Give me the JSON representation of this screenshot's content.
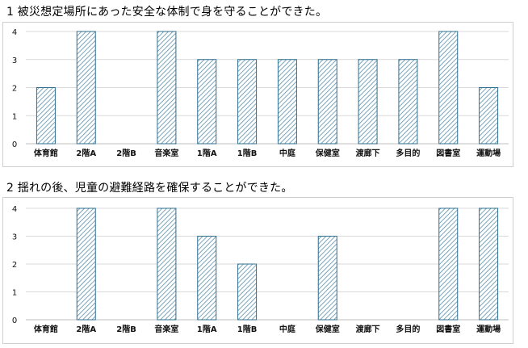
{
  "charts": [
    {
      "title": "1 被災想定場所にあった安全な体制で身を守ることができた。"
    },
    {
      "title": "2 揺れの後、児童の避難経路を確保することができた。"
    }
  ],
  "colors": {
    "bar_stroke": "#2f6f8f",
    "hatch": "#5a8fab",
    "grid": "#d9d9d9",
    "axis": "#bfbfbf"
  },
  "chart_data": [
    {
      "type": "bar",
      "title": "1 被災想定場所にあった安全な体制で身を守ることができた。",
      "categories": [
        "体育館",
        "2階A",
        "2階B",
        "音楽室",
        "1階A",
        "1階B",
        "中庭",
        "保健室",
        "渡廊下",
        "多目的",
        "図書室",
        "運動場"
      ],
      "values": [
        2,
        4,
        0,
        4,
        3,
        3,
        3,
        3,
        3,
        3,
        4,
        2
      ],
      "yticks": [
        0,
        1,
        2,
        3,
        4
      ],
      "ylim": [
        0,
        4
      ],
      "grid": true
    },
    {
      "type": "bar",
      "title": "2 揺れの後、児童の避難経路を確保することができた。",
      "categories": [
        "体育館",
        "2階A",
        "2階B",
        "音楽室",
        "1階A",
        "1階B",
        "中庭",
        "保健室",
        "渡廊下",
        "多目的",
        "図書室",
        "運動場"
      ],
      "values": [
        0,
        4,
        0,
        4,
        3,
        2,
        0,
        3,
        0,
        0,
        4,
        4
      ],
      "yticks": [
        0,
        1,
        2,
        3,
        4
      ],
      "ylim": [
        0,
        4
      ],
      "grid": true
    }
  ]
}
